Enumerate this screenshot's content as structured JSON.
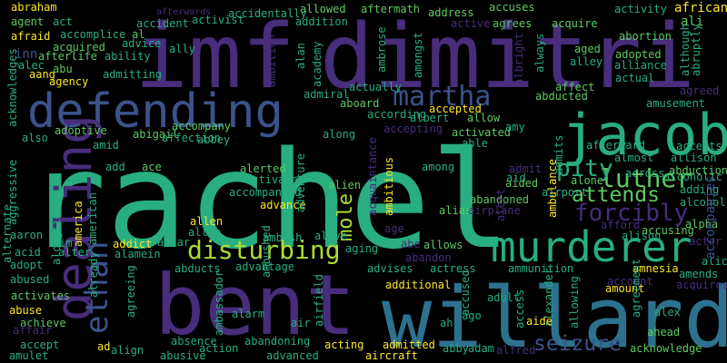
{
  "palette": {
    "background": "#000000",
    "purple_dark": "#440154",
    "purple": "#472d7b",
    "indigo": "#3b528b",
    "blue": "#2c728e",
    "teal": "#21918c",
    "green": "#28ae80",
    "green_light": "#5ec962",
    "lime": "#addc30",
    "yellow": "#fde725"
  },
  "words": [
    {
      "text": "rachel",
      "color": "#28ae80"
    },
    {
      "text": "imf",
      "color": "#472d7b"
    },
    {
      "text": "dimitri",
      "color": "#472d7b"
    },
    {
      "text": "bent",
      "color": "#472d7b"
    },
    {
      "text": "willard",
      "color": "#2c728e"
    },
    {
      "text": "jacob",
      "color": "#28ae80"
    },
    {
      "text": "defending",
      "color": "#3b528b"
    },
    {
      "text": "murderer",
      "color": "#28ae80"
    },
    {
      "text": "dealing",
      "color": "#472d7b"
    },
    {
      "text": "disturbing",
      "color": "#addc30"
    },
    {
      "text": "martha",
      "color": "#3b528b"
    },
    {
      "text": "luther",
      "color": "#5ec962"
    },
    {
      "text": "ethan",
      "color": "#3b528b"
    },
    {
      "text": "forcibly",
      "color": "#472d7b"
    },
    {
      "text": "pity",
      "color": "#28ae80"
    },
    {
      "text": "attends",
      "color": "#5ec962"
    },
    {
      "text": "seizure",
      "color": "#3b528b"
    },
    {
      "text": "mole",
      "color": "#addc30"
    },
    {
      "text": "abduction",
      "color": "#5ec962"
    },
    {
      "text": "african",
      "color": "#fde725"
    },
    {
      "text": "abraham",
      "color": "#fde725"
    },
    {
      "text": "afterwards",
      "color": "#472d7b"
    },
    {
      "text": "allowed",
      "color": "#5ec962"
    },
    {
      "text": "aftermath",
      "color": "#5ec962"
    },
    {
      "text": "address",
      "color": "#5ec962"
    },
    {
      "text": "accuses",
      "color": "#5ec962"
    },
    {
      "text": "activity",
      "color": "#28ae80"
    },
    {
      "text": "ali",
      "color": "#5ec962"
    },
    {
      "text": "agent",
      "color": "#5ec962"
    },
    {
      "text": "act",
      "color": "#28ae80"
    },
    {
      "text": "accident",
      "color": "#28ae80"
    },
    {
      "text": "activist",
      "color": "#28ae80"
    },
    {
      "text": "accidentally",
      "color": "#28ae80"
    },
    {
      "text": "addition",
      "color": "#28ae80"
    },
    {
      "text": "agrees",
      "color": "#5ec962"
    },
    {
      "text": "active",
      "color": "#472d7b"
    },
    {
      "text": "acquire",
      "color": "#5ec962"
    },
    {
      "text": "afraid",
      "color": "#fde725"
    },
    {
      "text": "accomplice",
      "color": "#28ae80"
    },
    {
      "text": "al",
      "color": "#5ec962"
    },
    {
      "text": "abortion",
      "color": "#5ec962"
    },
    {
      "text": "afterlife",
      "color": "#5ec962"
    },
    {
      "text": "advice",
      "color": "#28ae80"
    },
    {
      "text": "ally",
      "color": "#28ae80"
    },
    {
      "text": "ability",
      "color": "#28ae80"
    },
    {
      "text": "aged",
      "color": "#5ec962"
    },
    {
      "text": "inn",
      "color": "#3b528b"
    },
    {
      "text": "acquired",
      "color": "#5ec962"
    },
    {
      "text": "alan",
      "color": "#28ae80"
    },
    {
      "text": "adopted",
      "color": "#5ec962"
    },
    {
      "text": "alley",
      "color": "#28ae80"
    },
    {
      "text": "aang",
      "color": "#fde725"
    },
    {
      "text": "abu",
      "color": "#5ec962"
    },
    {
      "text": "alliance",
      "color": "#28ae80"
    },
    {
      "text": "agency",
      "color": "#fde725"
    },
    {
      "text": "admitting",
      "color": "#28ae80"
    },
    {
      "text": "academy",
      "color": "#28ae80"
    },
    {
      "text": "actual",
      "color": "#28ae80"
    },
    {
      "text": "alec",
      "color": "#28ae80"
    },
    {
      "text": "ambition",
      "color": "#472d7b"
    },
    {
      "text": "affect",
      "color": "#5ec962"
    },
    {
      "text": "agreed",
      "color": "#472d7b"
    },
    {
      "text": "amusement",
      "color": "#28ae80"
    },
    {
      "text": "actually",
      "color": "#28ae80"
    },
    {
      "text": "admiral",
      "color": "#28ae80"
    },
    {
      "text": "aboard",
      "color": "#5ec962"
    },
    {
      "text": "according",
      "color": "#28ae80"
    },
    {
      "text": "accepted",
      "color": "#fde725"
    },
    {
      "text": "albert",
      "color": "#28ae80"
    },
    {
      "text": "allow",
      "color": "#5ec962"
    },
    {
      "text": "abducted",
      "color": "#5ec962"
    },
    {
      "text": "acknowledges",
      "color": "#28ae80"
    },
    {
      "text": "adoptive",
      "color": "#5ec962"
    },
    {
      "text": "abigail",
      "color": "#5ec962"
    },
    {
      "text": "accompany",
      "color": "#5ec962"
    },
    {
      "text": "abbey",
      "color": "#28ae80"
    },
    {
      "text": "affection",
      "color": "#28ae80"
    },
    {
      "text": "accepting",
      "color": "#472d7b"
    },
    {
      "text": "along",
      "color": "#28ae80"
    },
    {
      "text": "activated",
      "color": "#5ec962"
    },
    {
      "text": "able",
      "color": "#28ae80"
    },
    {
      "text": "amy",
      "color": "#28ae80"
    },
    {
      "text": "afterward",
      "color": "#28ae80"
    },
    {
      "text": "accepts",
      "color": "#28ae80"
    },
    {
      "text": "allison",
      "color": "#28ae80"
    },
    {
      "text": "almost",
      "color": "#28ae80"
    },
    {
      "text": "also",
      "color": "#28ae80"
    },
    {
      "text": "amid",
      "color": "#28ae80"
    },
    {
      "text": "aggressive",
      "color": "#28ae80"
    },
    {
      "text": "add",
      "color": "#28ae80"
    },
    {
      "text": "ace",
      "color": "#5ec962"
    },
    {
      "text": "alerted",
      "color": "#5ec962"
    },
    {
      "text": "among",
      "color": "#28ae80"
    },
    {
      "text": "admit",
      "color": "#472d7b"
    },
    {
      "text": "aided",
      "color": "#5ec962"
    },
    {
      "text": "aid",
      "color": "#28ae80"
    },
    {
      "text": "alone",
      "color": "#5ec962"
    },
    {
      "text": "across",
      "color": "#28ae80"
    },
    {
      "text": "alcoholic",
      "color": "#28ae80"
    },
    {
      "text": "activate",
      "color": "#28ae80"
    },
    {
      "text": "accompanied",
      "color": "#28ae80"
    },
    {
      "text": "alien",
      "color": "#5ec962"
    },
    {
      "text": "adding",
      "color": "#28ae80"
    },
    {
      "text": "alcohol",
      "color": "#28ae80"
    },
    {
      "text": "airport",
      "color": "#28ae80"
    },
    {
      "text": "abandoned",
      "color": "#5ec962"
    },
    {
      "text": "alternate",
      "color": "#28ae80"
    },
    {
      "text": "alongside",
      "color": "#28ae80"
    },
    {
      "text": "advance",
      "color": "#fde725"
    },
    {
      "text": "alias",
      "color": "#5ec962"
    },
    {
      "text": "airplane",
      "color": "#472d7b"
    },
    {
      "text": "afford",
      "color": "#472d7b"
    },
    {
      "text": "alpha",
      "color": "#5ec962"
    },
    {
      "text": "actor",
      "color": "#472d7b"
    },
    {
      "text": "america",
      "color": "#fde725"
    },
    {
      "text": "american",
      "color": "#28ae80"
    },
    {
      "text": "allen",
      "color": "#fde725"
    },
    {
      "text": "allie",
      "color": "#28ae80"
    },
    {
      "text": "aaron",
      "color": "#28ae80"
    },
    {
      "text": "age",
      "color": "#472d7b"
    },
    {
      "text": "accusing",
      "color": "#5ec962"
    },
    {
      "text": "alison",
      "color": "#28ae80"
    },
    {
      "text": "aim",
      "color": "#28ae80"
    },
    {
      "text": "alive",
      "color": "#28ae80"
    },
    {
      "text": "abe",
      "color": "#472d7b"
    },
    {
      "text": "allows",
      "color": "#5ec962"
    },
    {
      "text": "alice",
      "color": "#28ae80"
    },
    {
      "text": "acid",
      "color": "#28ae80"
    },
    {
      "text": "alter",
      "color": "#28ae80"
    },
    {
      "text": "addict",
      "color": "#fde725"
    },
    {
      "text": "altar",
      "color": "#28ae80"
    },
    {
      "text": "ambush",
      "color": "#28ae80"
    },
    {
      "text": "aging",
      "color": "#28ae80"
    },
    {
      "text": "alamein",
      "color": "#28ae80"
    },
    {
      "text": "abandon",
      "color": "#472d7b"
    },
    {
      "text": "amnesia",
      "color": "#fde725"
    },
    {
      "text": "adopt",
      "color": "#28ae80"
    },
    {
      "text": "abducts",
      "color": "#28ae80"
    },
    {
      "text": "advantage",
      "color": "#28ae80"
    },
    {
      "text": "advises",
      "color": "#28ae80"
    },
    {
      "text": "actress",
      "color": "#28ae80"
    },
    {
      "text": "ammunition",
      "color": "#28ae80"
    },
    {
      "text": "amends",
      "color": "#28ae80"
    },
    {
      "text": "account",
      "color": "#472d7b"
    },
    {
      "text": "acquires",
      "color": "#472d7b"
    },
    {
      "text": "abused",
      "color": "#28ae80"
    },
    {
      "text": "ambushed",
      "color": "#28ae80"
    },
    {
      "text": "additional",
      "color": "#fde725"
    },
    {
      "text": "accused",
      "color": "#28ae80"
    },
    {
      "text": "adult",
      "color": "#28ae80"
    },
    {
      "text": "alexander",
      "color": "#28ae80"
    },
    {
      "text": "amount",
      "color": "#fde725"
    },
    {
      "text": "already",
      "color": "#28ae80"
    },
    {
      "text": "activates",
      "color": "#5ec962"
    },
    {
      "text": "agreeing",
      "color": "#28ae80"
    },
    {
      "text": "ambassador",
      "color": "#28ae80"
    },
    {
      "text": "abuse",
      "color": "#fde725"
    },
    {
      "text": "alarm",
      "color": "#28ae80"
    },
    {
      "text": "airfield",
      "color": "#28ae80"
    },
    {
      "text": "access",
      "color": "#28ae80"
    },
    {
      "text": "allowing",
      "color": "#28ae80"
    },
    {
      "text": "agreement",
      "color": "#28ae80"
    },
    {
      "text": "alex",
      "color": "#28ae80"
    },
    {
      "text": "achieve",
      "color": "#5ec962"
    },
    {
      "text": "air",
      "color": "#28ae80"
    },
    {
      "text": "ah",
      "color": "#28ae80"
    },
    {
      "text": "ago",
      "color": "#28ae80"
    },
    {
      "text": "aide",
      "color": "#fde725"
    },
    {
      "text": "accompanies",
      "color": "#3b528b"
    },
    {
      "text": "affair",
      "color": "#472d7b"
    },
    {
      "text": "ahead",
      "color": "#5ec962"
    },
    {
      "text": "accept",
      "color": "#28ae80"
    },
    {
      "text": "ad",
      "color": "#fde725"
    },
    {
      "text": "align",
      "color": "#28ae80"
    },
    {
      "text": "absence",
      "color": "#28ae80"
    },
    {
      "text": "action",
      "color": "#28ae80"
    },
    {
      "text": "abandoning",
      "color": "#28ae80"
    },
    {
      "text": "acting",
      "color": "#fde725"
    },
    {
      "text": "admitted",
      "color": "#fde725"
    },
    {
      "text": "abby",
      "color": "#28ae80"
    },
    {
      "text": "adam",
      "color": "#28ae80"
    },
    {
      "text": "alfred",
      "color": "#472d7b"
    },
    {
      "text": "acknowledge",
      "color": "#5ec962"
    },
    {
      "text": "amulet",
      "color": "#28ae80"
    },
    {
      "text": "abusive",
      "color": "#28ae80"
    },
    {
      "text": "advanced",
      "color": "#28ae80"
    },
    {
      "text": "aircraft",
      "color": "#fde725"
    },
    {
      "text": "ambitious",
      "color": "#fde725"
    },
    {
      "text": "acquaintance",
      "color": "#472d7b"
    },
    {
      "text": "adventure",
      "color": "#28ae80"
    },
    {
      "text": "albright",
      "color": "#472d7b"
    },
    {
      "text": "ambrose",
      "color": "#28ae80"
    },
    {
      "text": "amongst",
      "color": "#28ae80"
    },
    {
      "text": "always",
      "color": "#28ae80"
    },
    {
      "text": "admits",
      "color": "#28ae80"
    },
    {
      "text": "ambulance",
      "color": "#fde725"
    },
    {
      "text": "although",
      "color": "#28ae80"
    },
    {
      "text": "abruptly",
      "color": "#28ae80"
    },
    {
      "text": "alert",
      "color": "#472d7b"
    }
  ]
}
